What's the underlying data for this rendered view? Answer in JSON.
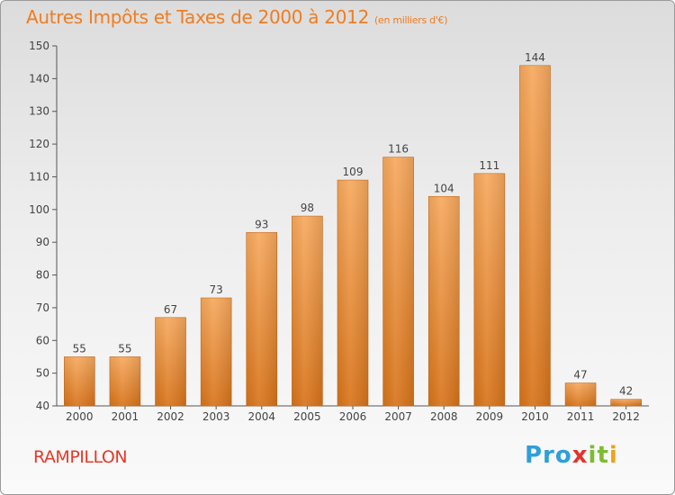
{
  "title": "Autres Impôts et Taxes de 2000 à 2012",
  "subtitle": "(en milliers d'€)",
  "commune": "RAMPILLON",
  "logo": {
    "p1": "Pro",
    "p2": "x",
    "p3": "it",
    "p4": "i"
  },
  "colors": {
    "bar_top": "#f6a65a",
    "bar_bottom": "#d97415",
    "title": "#ef7d22",
    "commune": "#e23b2a"
  },
  "chart_data": {
    "type": "bar",
    "title": "Autres Impôts et Taxes de 2000 à 2012",
    "subtitle": "(en milliers d'€)",
    "categories": [
      "2000",
      "2001",
      "2002",
      "2003",
      "2004",
      "2005",
      "2006",
      "2007",
      "2008",
      "2009",
      "2010",
      "2011",
      "2012"
    ],
    "values": [
      55,
      55,
      67,
      73,
      93,
      98,
      109,
      116,
      104,
      111,
      144,
      47,
      42
    ],
    "ylim": [
      40,
      150
    ],
    "yticks": [
      40,
      50,
      60,
      70,
      80,
      90,
      100,
      110,
      120,
      130,
      140,
      150
    ],
    "grid": false,
    "legend": "none"
  }
}
